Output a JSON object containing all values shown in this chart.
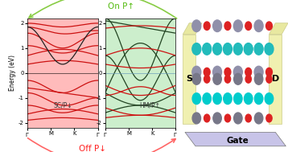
{
  "fig_width": 3.58,
  "fig_height": 1.89,
  "dpi": 100,
  "bg_color": "#ffffff",
  "panel1_bg": "#ffbbbb",
  "panel2_bg": "#cceecc",
  "label1": "SC/P↓",
  "label2": "HM/P↑",
  "ylabel": "Energy (eV)",
  "ylim": [
    -2.2,
    2.2
  ],
  "yticks": [
    -2,
    -1,
    0,
    1,
    2
  ],
  "on_p_text": "On P↑",
  "off_p_text": "Off P↓",
  "s_label": "S",
  "d_label": "D",
  "gate_label": "Gate",
  "arrow_green": "#88cc44",
  "arrow_red": "#ff6666",
  "text_green": "#55bb11",
  "text_red": "#ff2222",
  "color_red_band": "#cc1111",
  "color_dark_band": "#222222",
  "color_dark_green": "#224422",
  "atom_gray": "#9090aa",
  "atom_cyan": "#22bbbb",
  "atom_red": "#dd2222",
  "atom_cyan2": "#00cccc",
  "atom_gray2": "#777788",
  "gate_color": "#c8c4e8",
  "electrode_color": "#f0f0b0",
  "electrode_edge": "#cccc88"
}
